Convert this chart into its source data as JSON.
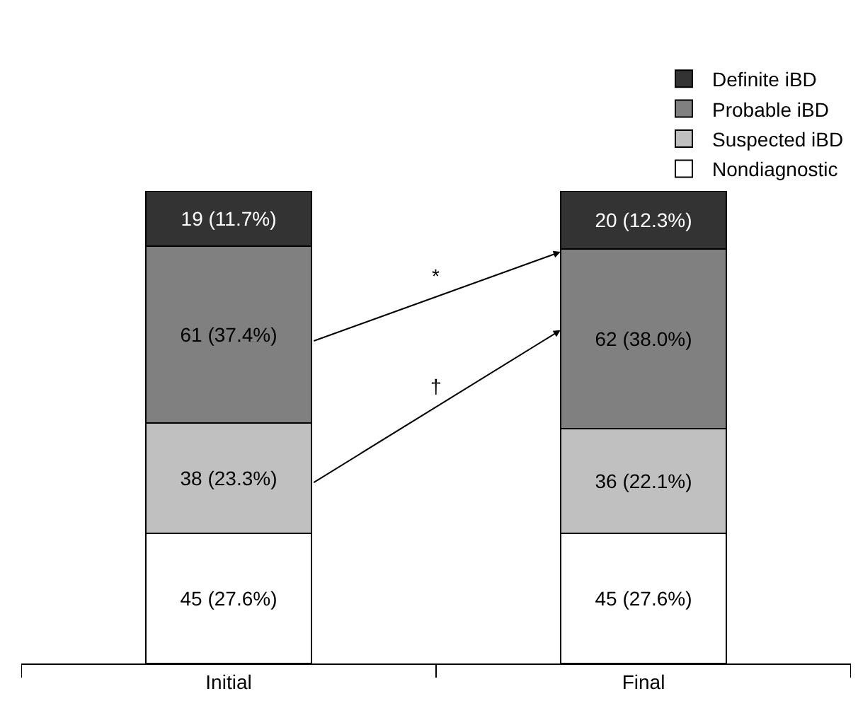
{
  "chart_data": {
    "type": "bar",
    "stacked": true,
    "categories": [
      "Initial",
      "Final"
    ],
    "series": [
      {
        "name": "Nondiagnostic",
        "color": "#ffffff",
        "values": [
          45,
          45
        ],
        "value_labels": [
          "45 (27.6%)",
          "45 (27.6%)"
        ]
      },
      {
        "name": "Suspected iBD",
        "color": "#c0c0c0",
        "values": [
          38,
          36
        ],
        "value_labels": [
          "38 (23.3%)",
          "36 (22.1%)"
        ]
      },
      {
        "name": "Probable iBD",
        "color": "#808080",
        "values": [
          61,
          62
        ],
        "value_labels": [
          "61 (37.4%)",
          "62 (38.0%)"
        ]
      },
      {
        "name": "Definite iBD",
        "color": "#333333",
        "values": [
          19,
          20
        ],
        "value_labels": [
          "19 (11.7%)",
          "20 (12.3%)"
        ]
      }
    ],
    "annotations": [
      "*",
      "†"
    ],
    "legend": "top right",
    "tick_labels": "x"
  }
}
